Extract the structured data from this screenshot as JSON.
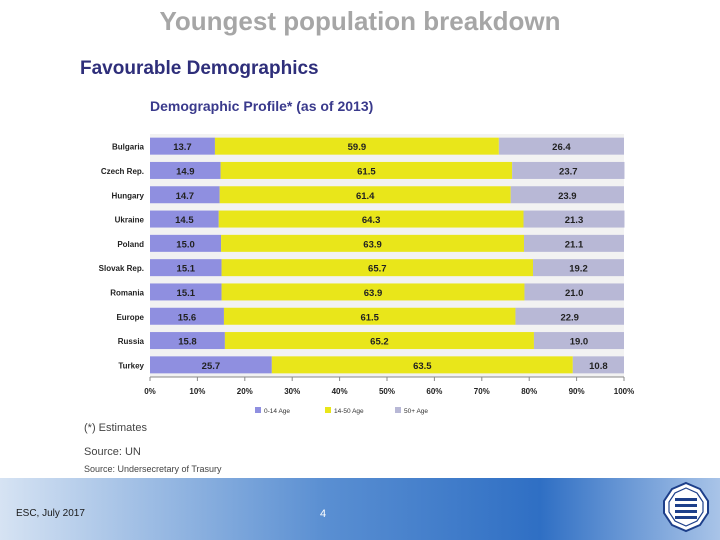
{
  "slide": {
    "title": "Youngest population breakdown",
    "heading": "Favourable Demographics",
    "estimates_note": "(*) Estimates",
    "source_un": "Source: UN",
    "source_2": "Source: Undersecretary of Trasury",
    "footer_left": "ESC, July 2017",
    "page_number": "4"
  },
  "chart_data": {
    "type": "bar",
    "orientation": "horizontal",
    "stacked": "percent",
    "title": "Demographic Profile* (as of 2013)",
    "categories": [
      "Bulgaria",
      "Czech Rep.",
      "Hungary",
      "Ukraine",
      "Poland",
      "Slovak Rep.",
      "Romania",
      "Europe",
      "Russia",
      "Turkey"
    ],
    "series": [
      {
        "name": "0-14 Age",
        "color": "#8f8fe0",
        "values": [
          "13.7",
          "14.9",
          "14.7",
          "14.5",
          "15.0",
          "15.1",
          "15.1",
          "15.6",
          "15.8",
          "25.7"
        ]
      },
      {
        "name": "14-50 Age",
        "color": "#e9e61a",
        "values": [
          "59.9",
          "61.5",
          "61.4",
          "64.3",
          "63.9",
          "65.7",
          "63.9",
          "61.5",
          "65.2",
          "63.5"
        ]
      },
      {
        "name": "50+ Age",
        "color": "#b8b8d6",
        "values": [
          "26.4",
          "23.7",
          "23.9",
          "21.3",
          "21.1",
          "19.2",
          "21.0",
          "22.9",
          "19.0",
          "10.8"
        ]
      }
    ],
    "x_ticks": [
      "0%",
      "10%",
      "20%",
      "30%",
      "40%",
      "50%",
      "60%",
      "70%",
      "80%",
      "90%",
      "100%"
    ],
    "xlim": [
      0,
      100
    ],
    "legend_position": "bottom",
    "grid": false
  }
}
